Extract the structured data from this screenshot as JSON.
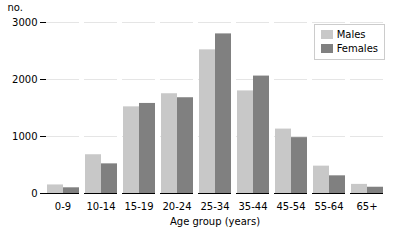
{
  "chart_data": {
    "type": "bar",
    "categories": [
      "0-9",
      "10-14",
      "15-19",
      "20-24",
      "25-34",
      "35-44",
      "45-54",
      "55-64",
      "65+"
    ],
    "series": [
      {
        "name": "Males",
        "color": "#c8c8c8",
        "values": [
          150,
          680,
          1520,
          1750,
          2520,
          1800,
          1130,
          480,
          160
        ]
      },
      {
        "name": "Females",
        "color": "#808080",
        "values": [
          100,
          520,
          1580,
          1680,
          2800,
          2060,
          980,
          310,
          110
        ]
      }
    ],
    "xlabel": "Age group (years)",
    "ylabel": "no.",
    "ylim": [
      0,
      3000
    ],
    "yticks": [
      0,
      1000,
      2000,
      3000
    ],
    "grid": true,
    "legend": "upper right"
  }
}
